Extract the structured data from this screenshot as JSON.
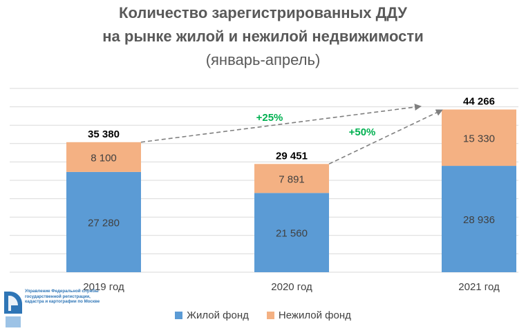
{
  "title": {
    "line1": "Количество зарегистрированных ДДУ",
    "line2": "на рынке жилой и нежилой недвижимости",
    "line3": "(январь-апрель)"
  },
  "logo": {
    "text": "Управление Федеральной службы государственной регистрации, кадастра и картографии по Москве"
  },
  "chart_data": {
    "type": "bar",
    "stacked": true,
    "categories": [
      "2019 год",
      "2020 год",
      "2021 год"
    ],
    "series": [
      {
        "name": "Жилой фонд",
        "color": "#5b9bd5",
        "values": [
          27280,
          21560,
          28936
        ],
        "labels": [
          "27 280",
          "21 560",
          "28 936"
        ]
      },
      {
        "name": "Нежилой фонд",
        "color": "#f4b183",
        "values": [
          8100,
          7891,
          15330
        ],
        "labels": [
          "8 100",
          "7 891",
          "15 330"
        ]
      }
    ],
    "totals": [
      35380,
      29451,
      44266
    ],
    "total_labels": [
      "35 380",
      "29 451",
      "44 266"
    ],
    "ylim": [
      0,
      50000
    ],
    "grid": true,
    "legend": "bottom",
    "annotations": [
      {
        "text": "+25%",
        "from": 0,
        "to": 2,
        "color": "#00b050"
      },
      {
        "text": "+50%",
        "from": 1,
        "to": 2,
        "color": "#00b050"
      }
    ]
  }
}
